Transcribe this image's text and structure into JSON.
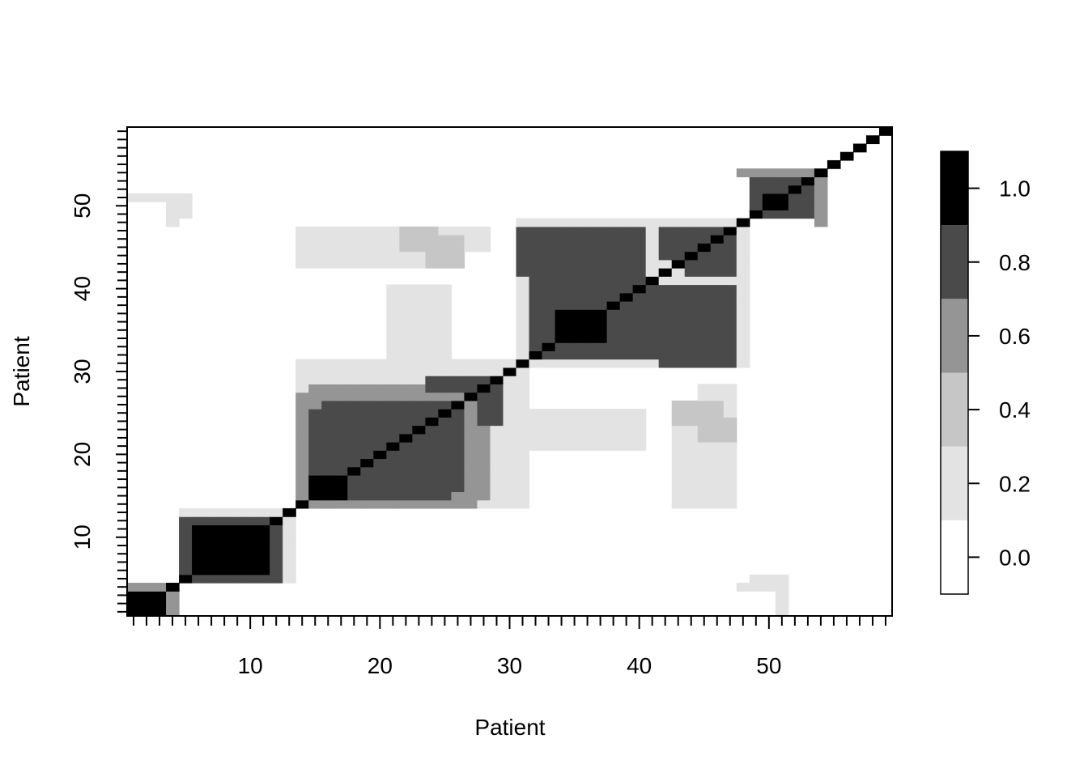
{
  "chart_data": {
    "type": "heatmap",
    "title": "",
    "xlabel": "Patient",
    "ylabel": "Patient",
    "n": 59,
    "xlim": [
      0.5,
      59.5
    ],
    "ylim": [
      0.5,
      59.5
    ],
    "x_ticks": [
      10,
      20,
      30,
      40,
      50
    ],
    "y_ticks": [
      10,
      20,
      30,
      40,
      50
    ],
    "x_tick_labels": [
      "10",
      "20",
      "30",
      "40",
      "50"
    ],
    "y_tick_labels": [
      "10",
      "20",
      "30",
      "40",
      "50"
    ],
    "colorbar": {
      "levels": [
        0.0,
        0.2,
        0.4,
        0.6,
        0.8,
        1.0
      ],
      "colors": [
        "#ffffff",
        "#e3e3e3",
        "#c6c6c6",
        "#959595",
        "#4a4a4a",
        "#000000"
      ],
      "tick_values": [
        0.0,
        0.2,
        0.4,
        0.6,
        0.8,
        1.0
      ],
      "tick_labels": [
        "0.0",
        "0.2",
        "0.4",
        "0.6",
        "0.8",
        "1.0"
      ],
      "range": [
        -0.1,
        1.1
      ]
    },
    "legend_position": "right",
    "grid": false,
    "diagonal_value": 1.0,
    "blocks": [
      {
        "x": [
          1,
          3
        ],
        "y": [
          1,
          3
        ],
        "value": 1.0
      },
      {
        "x": [
          1,
          4
        ],
        "y": [
          4,
          4
        ],
        "value": 0.6
      },
      {
        "x": [
          4,
          4
        ],
        "y": [
          1,
          3
        ],
        "value": 0.6
      },
      {
        "x": [
          6,
          11
        ],
        "y": [
          6,
          11
        ],
        "value": 1.0
      },
      {
        "x": [
          5,
          12
        ],
        "y": [
          5,
          12
        ],
        "value": 0.8
      },
      {
        "x": [
          5,
          13
        ],
        "y": [
          13,
          13
        ],
        "value": 0.2
      },
      {
        "x": [
          13,
          13
        ],
        "y": [
          5,
          12
        ],
        "value": 0.2
      },
      {
        "x": [
          15,
          27
        ],
        "y": [
          14,
          28
        ],
        "value": 0.6
      },
      {
        "x": [
          16,
          25
        ],
        "y": [
          15,
          26
        ],
        "value": 0.8
      },
      {
        "x": [
          16,
          17
        ],
        "y": [
          15,
          16
        ],
        "value": 1.0
      },
      {
        "x": [
          14,
          30
        ],
        "y": [
          29,
          31
        ],
        "value": 0.2
      },
      {
        "x": [
          27,
          31
        ],
        "y": [
          14,
          27
        ],
        "value": 0.2
      },
      {
        "x": [
          28,
          29
        ],
        "y": [
          24,
          29
        ],
        "value": 0.8
      },
      {
        "x": [
          31,
          48
        ],
        "y": [
          31,
          47
        ],
        "value": 0.2
      },
      {
        "x": [
          31,
          40
        ],
        "y": [
          42,
          47
        ],
        "value": 0.8
      },
      {
        "x": [
          32,
          40
        ],
        "y": [
          32,
          41
        ],
        "value": 0.8
      },
      {
        "x": [
          34,
          36
        ],
        "y": [
          34,
          37
        ],
        "value": 1.0
      },
      {
        "x": [
          45,
          47
        ],
        "y": [
          31,
          39
        ],
        "value": 0.8
      },
      {
        "x": [
          44,
          47
        ],
        "y": [
          42,
          47
        ],
        "value": 0.8
      },
      {
        "x": [
          14,
          23
        ],
        "y": [
          43,
          47
        ],
        "value": 0.2
      },
      {
        "x": [
          24,
          26
        ],
        "y": [
          43,
          46
        ],
        "value": 0.4
      },
      {
        "x": [
          22,
          25
        ],
        "y": [
          30,
          40
        ],
        "value": 0.2
      },
      {
        "x": [
          31,
          40
        ],
        "y": [
          21,
          24
        ],
        "value": 0.2
      },
      {
        "x": [
          45,
          47
        ],
        "y": [
          14,
          28
        ],
        "value": 0.2
      },
      {
        "x": [
          45,
          47
        ],
        "y": [
          22,
          24
        ],
        "value": 0.4
      },
      {
        "x": [
          49,
          53
        ],
        "y": [
          49,
          53
        ],
        "value": 0.8
      },
      {
        "x": [
          48,
          54
        ],
        "y": [
          54,
          54
        ],
        "value": 0.6
      },
      {
        "x": [
          50,
          51
        ],
        "y": [
          50,
          51
        ],
        "value": 1.0
      },
      {
        "x": [
          1,
          4
        ],
        "y": [
          51,
          51
        ],
        "value": 0.2
      },
      {
        "x": [
          5,
          5
        ],
        "y": [
          49,
          51
        ],
        "value": 0.2
      },
      {
        "x": [
          48,
          50
        ],
        "y": [
          4,
          4
        ],
        "value": 0.2
      },
      {
        "x": [
          51,
          51
        ],
        "y": [
          1,
          2
        ],
        "value": 0.2
      }
    ]
  }
}
